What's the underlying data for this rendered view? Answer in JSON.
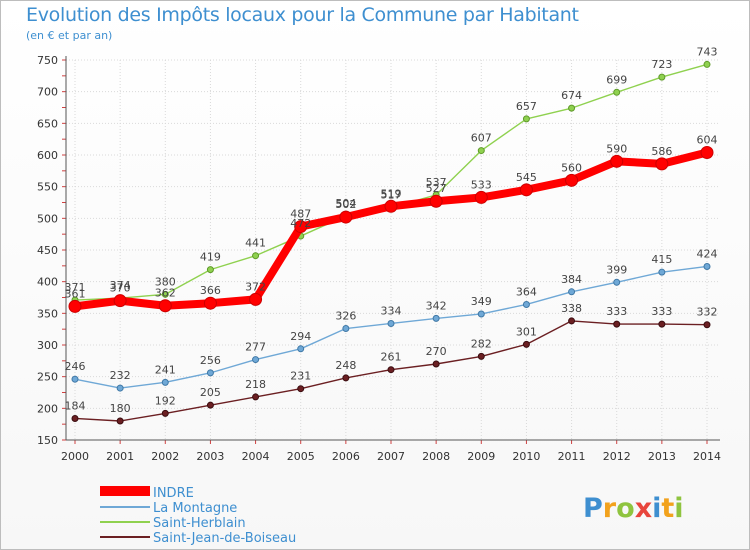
{
  "chart_data": {
    "type": "line",
    "title": "Evolution des Impôts locaux pour la Commune par Habitant",
    "subtitle": "(en € et par an)",
    "xlabel": "",
    "ylabel": "",
    "ylim": [
      150,
      750
    ],
    "y_ticks": [
      150,
      200,
      250,
      300,
      350,
      400,
      450,
      500,
      550,
      600,
      650,
      700,
      750
    ],
    "x": [
      "2000",
      "2001",
      "2002",
      "2003",
      "2004",
      "2005",
      "2006",
      "2007",
      "2008",
      "2009",
      "2010",
      "2011",
      "2012",
      "2013",
      "2014"
    ],
    "legend_position": "bottom-left",
    "series": [
      {
        "name": "INDRE",
        "color": "#ff0000",
        "values": [
          361,
          370,
          362,
          366,
          372,
          487,
          502,
          519,
          527,
          533,
          545,
          560,
          590,
          586,
          604
        ]
      },
      {
        "name": "La Montagne",
        "color": "#6fa8d6",
        "values": [
          246,
          232,
          241,
          256,
          277,
          294,
          326,
          334,
          342,
          349,
          364,
          384,
          399,
          415,
          424
        ]
      },
      {
        "name": "Saint-Herblain",
        "color": "#8fd14f",
        "values": [
          371,
          374,
          380,
          419,
          441,
          472,
          504,
          517,
          537,
          607,
          657,
          674,
          699,
          723,
          743
        ]
      },
      {
        "name": "Saint-Jean-de-Boiseau",
        "color": "#6b1f22",
        "values": [
          184,
          180,
          192,
          205,
          218,
          231,
          248,
          261,
          270,
          282,
          301,
          338,
          333,
          333,
          332
        ]
      }
    ]
  },
  "logo_text": "Proxiti"
}
